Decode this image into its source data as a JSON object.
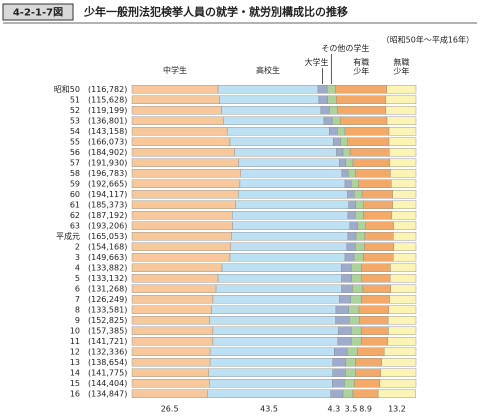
{
  "chart_data": {
    "type": "stacked-bar-horizontal",
    "figure_id": "4-2-1-7図",
    "title": "少年一般刑法犯検挙人員の就学・就労別構成比の推移",
    "subtitle": "（昭和50年～平成16年）",
    "categories": [
      "昭和50",
      "51",
      "52",
      "53",
      "54",
      "55",
      "56",
      "57",
      "58",
      "59",
      "60",
      "61",
      "62",
      "63",
      "平成元",
      "2",
      "3",
      "4",
      "5",
      "6",
      "7",
      "8",
      "9",
      "10",
      "11",
      "12",
      "13",
      "14",
      "15",
      "16"
    ],
    "counts": [
      "(116,782)",
      "(115,628)",
      "(119,199)",
      "(136,801)",
      "(143,158)",
      "(166,073)",
      "(184,902)",
      "(191,930)",
      "(196,783)",
      "(192,665)",
      "(194,117)",
      "(185,373)",
      "(187,192)",
      "(193,206)",
      "(165,053)",
      "(154,168)",
      "(149,663)",
      "(133,882)",
      "(133,132)",
      "(131,268)",
      "(126,249)",
      "(133,581)",
      "(152,825)",
      "(157,385)",
      "(141,721)",
      "(132,336)",
      "(138,654)",
      "(141,775)",
      "(144,404)",
      "(134,847)"
    ],
    "xlim": [
      0,
      100
    ],
    "series": [
      {
        "name": "中学生",
        "color": "#f7c89c",
        "values": [
          30.3,
          30.8,
          31.5,
          32.3,
          33.5,
          34.5,
          36.2,
          37.5,
          38.3,
          38.0,
          37.4,
          36.5,
          35.3,
          35.4,
          35.0,
          34.8,
          34.5,
          31.7,
          30.3,
          29.6,
          28.5,
          28.0,
          27.4,
          28.5,
          28.5,
          27.5,
          27.5,
          27.0,
          27.2,
          26.5
        ]
      },
      {
        "name": "高校生",
        "color": "#bde0f3",
        "values": [
          35.2,
          35.0,
          35.0,
          35.3,
          36.0,
          36.4,
          35.8,
          35.5,
          35.6,
          37.0,
          38.5,
          39.8,
          40.7,
          41.3,
          41.0,
          40.8,
          40.5,
          42.0,
          43.5,
          44.2,
          44.5,
          43.8,
          44.3,
          44.2,
          44.0,
          43.7,
          43.2,
          43.7,
          43.3,
          43.5
        ]
      },
      {
        "name": "大学生",
        "color": "#9eabcc",
        "values": [
          3.2,
          3.1,
          3.0,
          2.9,
          2.8,
          2.5,
          2.3,
          2.2,
          2.2,
          2.2,
          2.4,
          2.5,
          2.6,
          2.7,
          2.9,
          3.0,
          3.2,
          3.5,
          3.5,
          3.8,
          4.0,
          4.5,
          4.8,
          4.5,
          4.7,
          4.6,
          4.5,
          4.4,
          4.3,
          4.3
        ]
      },
      {
        "name": "その他の学生",
        "color": "#acd39c",
        "values": [
          3.0,
          3.0,
          2.9,
          2.8,
          2.7,
          2.6,
          2.5,
          2.6,
          2.6,
          2.6,
          2.7,
          2.8,
          2.9,
          2.9,
          3.1,
          3.2,
          3.3,
          3.5,
          3.6,
          3.7,
          3.7,
          3.6,
          3.5,
          3.6,
          3.5,
          3.5,
          3.5,
          3.5,
          3.5,
          3.5
        ]
      },
      {
        "name": "有職少年",
        "color": "#f3a967",
        "values": [
          18.0,
          17.5,
          17.0,
          16.5,
          15.5,
          14.5,
          13.8,
          13.0,
          12.3,
          11.5,
          10.8,
          10.2,
          10.0,
          9.8,
          10.0,
          10.4,
          10.5,
          10.3,
          10.0,
          9.8,
          10.0,
          10.5,
          10.2,
          9.5,
          9.4,
          9.5,
          9.2,
          9.0,
          9.0,
          8.9
        ]
      },
      {
        "name": "無職少年",
        "color": "#fcf4b4",
        "values": [
          10.3,
          10.6,
          10.6,
          10.2,
          9.5,
          9.5,
          9.4,
          9.2,
          9.0,
          8.7,
          8.2,
          8.2,
          8.5,
          7.9,
          8.0,
          7.8,
          8.0,
          9.0,
          9.1,
          8.9,
          9.3,
          9.6,
          9.8,
          9.7,
          9.9,
          11.2,
          12.1,
          12.4,
          12.7,
          13.2
        ]
      }
    ]
  }
}
